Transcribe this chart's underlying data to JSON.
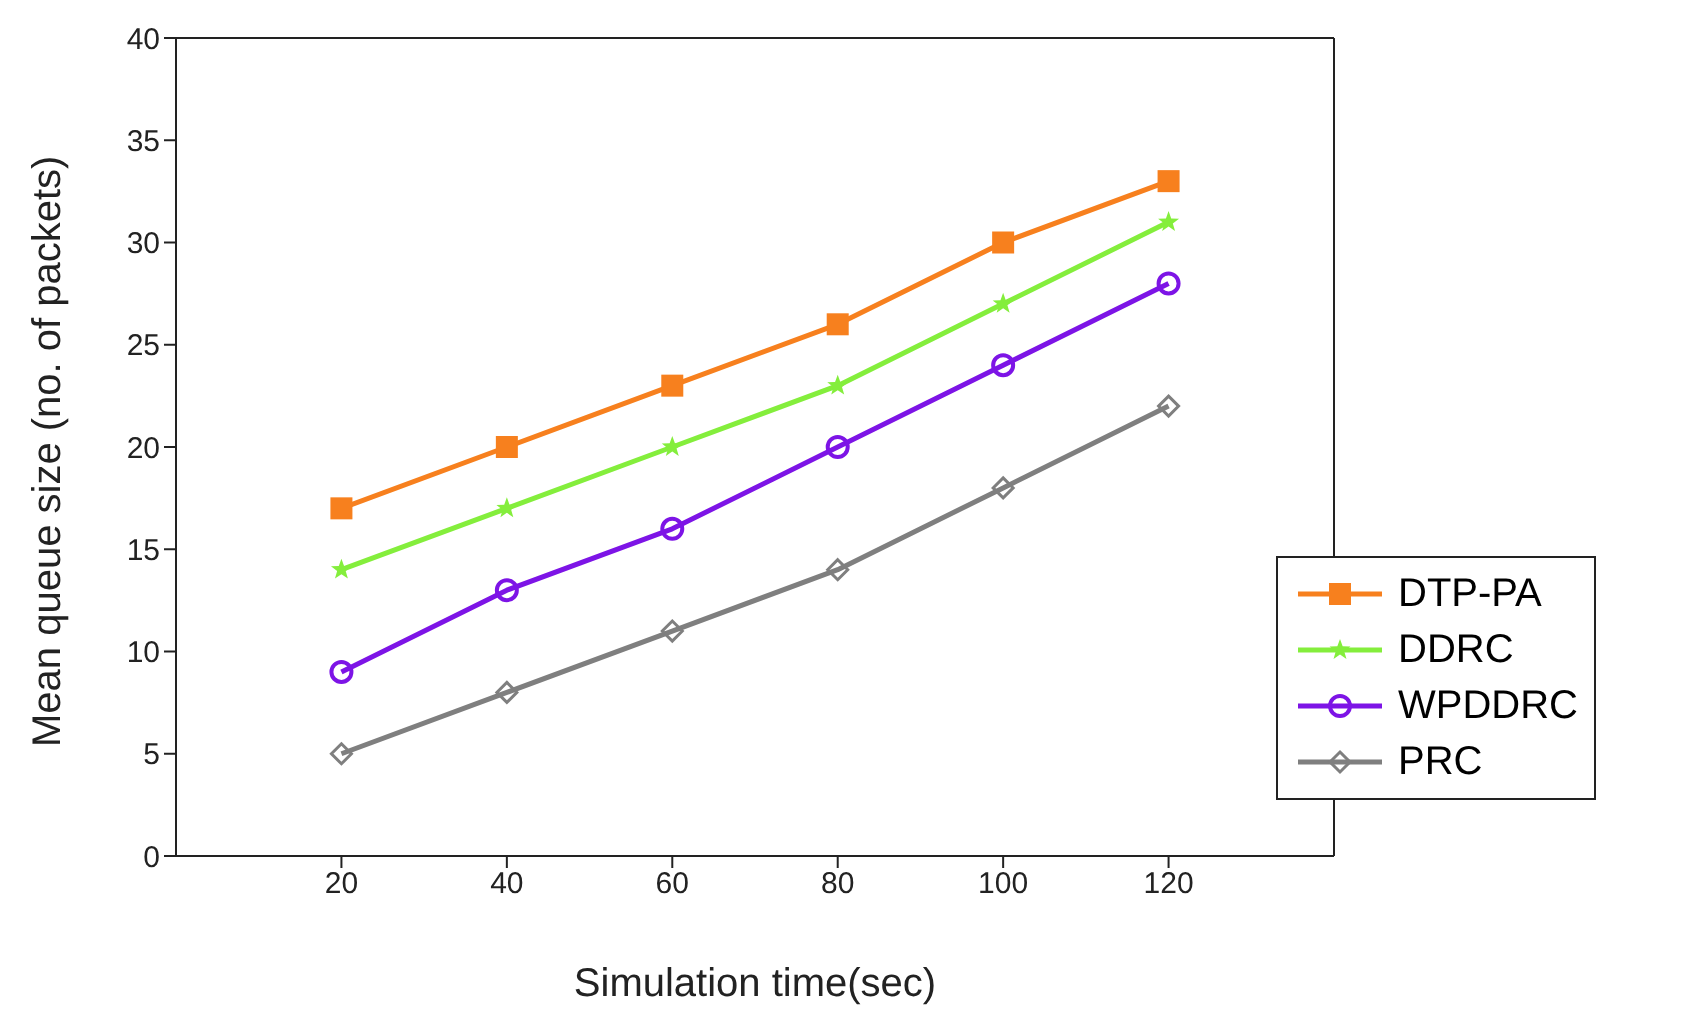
{
  "chart_data": {
    "type": "line",
    "xlabel": "Simulation time(sec)",
    "ylabel": "Mean queue size (no. of packets)",
    "x": [
      20,
      40,
      60,
      80,
      100,
      120
    ],
    "xlim": [
      0,
      140
    ],
    "xticks": [
      20,
      40,
      60,
      80,
      100,
      120
    ],
    "ylim": [
      0,
      40
    ],
    "yticks": [
      0,
      5,
      10,
      15,
      20,
      25,
      30,
      35,
      40
    ],
    "legend": "right",
    "line_style": "solid",
    "series": [
      {
        "name": "DTP-PA",
        "color": "#f7801e",
        "marker": "square",
        "values": [
          17,
          20,
          23,
          26,
          30,
          33
        ]
      },
      {
        "name": "DDRC",
        "color": "#84ee3c",
        "marker": "star",
        "values": [
          14,
          17,
          20,
          23,
          27,
          31
        ]
      },
      {
        "name": "WPDDRC",
        "color": "#7d14e6",
        "marker": "circle",
        "values": [
          9,
          13,
          16,
          20,
          24,
          28
        ]
      },
      {
        "name": "PRC",
        "color": "#7f7f7f",
        "marker": "diamond",
        "values": [
          5,
          8,
          11,
          14,
          18,
          22
        ]
      }
    ]
  }
}
